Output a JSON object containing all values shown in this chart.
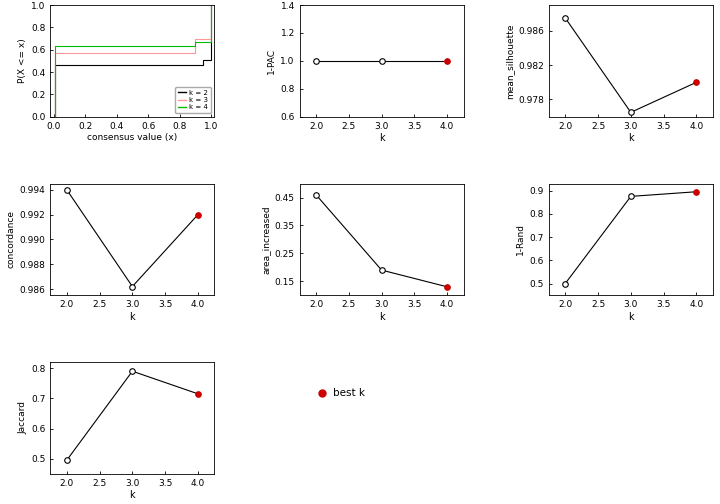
{
  "ecdf": {
    "k2": {
      "x": [
        0.0,
        0.01,
        0.01,
        0.95,
        0.95,
        1.0,
        1.0
      ],
      "y": [
        0.0,
        0.0,
        0.46,
        0.46,
        0.51,
        0.51,
        1.0
      ],
      "color": "#000000"
    },
    "k3": {
      "x": [
        0.0,
        0.01,
        0.01,
        0.9,
        0.9,
        1.0,
        1.0
      ],
      "y": [
        0.0,
        0.0,
        0.57,
        0.57,
        0.7,
        0.7,
        1.0
      ],
      "color": "#ff9999"
    },
    "k4": {
      "x": [
        0.0,
        0.01,
        0.01,
        0.9,
        0.9,
        1.0,
        1.0
      ],
      "y": [
        0.0,
        0.0,
        0.635,
        0.635,
        0.665,
        0.665,
        1.0
      ],
      "color": "#00bb00"
    }
  },
  "pac": {
    "k": [
      2,
      3,
      4
    ],
    "values": [
      0.9993,
      0.9993,
      0.9993
    ],
    "ylim": [
      0.6,
      1.4
    ],
    "yticks": [
      0.6,
      0.8,
      1.0,
      1.2,
      1.4
    ],
    "ylabel": "1-PAC"
  },
  "mean_sil": {
    "k": [
      2,
      3,
      4
    ],
    "values": [
      0.9875,
      0.9765,
      0.98
    ],
    "ylim": [
      0.976,
      0.989
    ],
    "yticks": [
      0.978,
      0.982,
      0.986
    ],
    "ylabel": "mean_silhouette"
  },
  "concordance": {
    "k": [
      2,
      3,
      4
    ],
    "values": [
      0.994,
      0.9862,
      0.992
    ],
    "ylim": [
      0.9855,
      0.9945
    ],
    "yticks": [
      0.986,
      0.988,
      0.99,
      0.992,
      0.994
    ],
    "ylabel": "concordance"
  },
  "area_increased": {
    "k": [
      2,
      3,
      4
    ],
    "values": [
      0.46,
      0.19,
      0.13
    ],
    "ylim": [
      0.1,
      0.5
    ],
    "yticks": [
      0.15,
      0.25,
      0.35,
      0.45
    ],
    "ylabel": "area_increased"
  },
  "rand": {
    "k": [
      2,
      3,
      4
    ],
    "values": [
      0.5,
      0.875,
      0.895
    ],
    "ylim": [
      0.45,
      0.93
    ],
    "yticks": [
      0.5,
      0.6,
      0.7,
      0.8,
      0.9
    ],
    "ylabel": "1-Rand"
  },
  "jaccard": {
    "k": [
      2,
      3,
      4
    ],
    "values": [
      0.495,
      0.79,
      0.715
    ],
    "ylim": [
      0.45,
      0.82
    ],
    "yticks": [
      0.5,
      0.6,
      0.7,
      0.8
    ],
    "ylabel": "Jaccard"
  },
  "best_k": 4,
  "line_color": "#000000",
  "open_circle_color": "#ffffff",
  "best_circle_color": "#cc0000",
  "circle_size": 4,
  "font_size": 7,
  "bg_color": "#ffffff"
}
